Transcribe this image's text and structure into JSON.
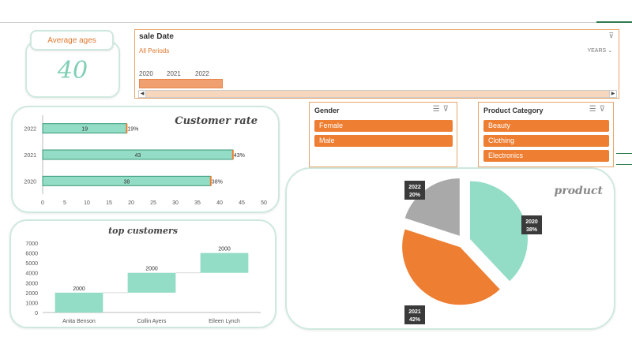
{
  "average_ages": {
    "label": "Average ages",
    "value": "40"
  },
  "timeline": {
    "title": "sale Date",
    "period": "All Periods",
    "unit": "YEARS",
    "years": [
      "2020",
      "2021",
      "2022"
    ]
  },
  "gender_slicer": {
    "title": "Gender",
    "items": [
      "Female",
      "Male"
    ]
  },
  "category_slicer": {
    "title": "Product Category",
    "items": [
      "Beauty",
      "Clothing",
      "Electronics"
    ]
  },
  "colors": {
    "teal": "#93dcc5",
    "orange": "#ee7e32",
    "gray": "#a9a9a9",
    "accent": "#e0782f"
  },
  "chart_data": [
    {
      "type": "bar",
      "orientation": "horizontal",
      "title": "Customer rate",
      "categories": [
        "2020",
        "2021",
        "2022"
      ],
      "values": [
        38,
        43,
        19
      ],
      "percent_labels": [
        "38%",
        "43%",
        "19%"
      ],
      "xlim": [
        0,
        50
      ],
      "xticks": [
        "0",
        "5",
        "10",
        "15",
        "20",
        "25",
        "30",
        "35",
        "40",
        "45",
        "50"
      ]
    },
    {
      "type": "bar",
      "title": "top customers",
      "categories": [
        "Anita Benson",
        "Collin Ayers",
        "Eileen Lynch"
      ],
      "values": [
        2000,
        2000,
        2000
      ],
      "bases": [
        0,
        2000,
        4000
      ],
      "ylim": [
        0,
        7000
      ],
      "yticks": [
        "0",
        "1000",
        "2000",
        "3000",
        "4000",
        "5000",
        "6000",
        "7000"
      ]
    },
    {
      "type": "pie",
      "title": "product",
      "labels": [
        "2020",
        "2021",
        "2022"
      ],
      "values": [
        38,
        42,
        20
      ],
      "percent_labels": [
        "38%",
        "42%",
        "20%"
      ]
    }
  ]
}
